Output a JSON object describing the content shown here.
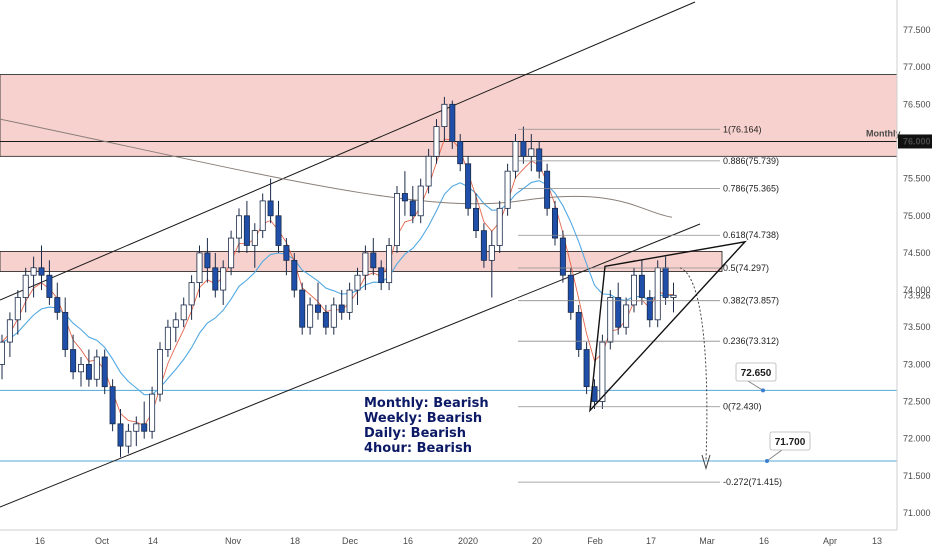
{
  "chart_data": {
    "type": "candlestick",
    "instrument_note": "",
    "y_axis": {
      "position": "right",
      "ylim": [
        70.8,
        77.95
      ],
      "ticks": [
        71.0,
        71.5,
        72.0,
        72.5,
        73.0,
        73.5,
        74.0,
        74.5,
        75.0,
        75.5,
        76.0,
        76.5,
        77.0,
        77.5
      ],
      "tick_labels": [
        "71.000",
        "71.500",
        "72.000",
        "72.500",
        "73.000",
        "73.500",
        "74.000",
        "74.500",
        "75.000",
        "75.500",
        "76.000",
        "76.500",
        "77.000",
        "77.500"
      ]
    },
    "x_axis": {
      "tick_labels": [
        "16",
        "Oct",
        "14",
        "Nov",
        "18",
        "Dec",
        "16",
        "2020",
        "20",
        "Feb",
        "17",
        "Mar",
        "16",
        "Apr",
        "13"
      ]
    },
    "current_price": {
      "label": "73.926",
      "value": 73.926
    },
    "colors": {
      "up": "#ffffff",
      "down": "#1f4fa8",
      "zone": "#f6c9c4",
      "ema_fast": "#e1573a",
      "ema_slow": "#52a9e3",
      "ma_long": "#8a7e78",
      "hline": "#55a8d8",
      "up_bar": "#ffffff"
    },
    "supply_zones": [
      {
        "from": 75.8,
        "to": 76.9
      },
      {
        "from": 74.25,
        "to": 74.52
      }
    ],
    "horizontal_levels": [
      {
        "name": "monthly",
        "value": 76.0,
        "label": "Monthly",
        "price_label": "76.000"
      },
      {
        "name": "target-1",
        "value": 72.65,
        "label": "72.650"
      },
      {
        "name": "target-2",
        "value": 71.7,
        "label": "71.700"
      }
    ],
    "fibonacci": [
      {
        "ratio": "1",
        "value": 76.164,
        "label": "1(76.164)"
      },
      {
        "ratio": "0.886",
        "value": 75.739,
        "label": "0.886(75.739)"
      },
      {
        "ratio": "0.786",
        "value": 75.365,
        "label": "0.786(75.365)"
      },
      {
        "ratio": "0.618",
        "value": 74.738,
        "label": "0.618(74.738)"
      },
      {
        "ratio": "0.5",
        "value": 74.297,
        "label": "0.5(74.297)"
      },
      {
        "ratio": "0.382",
        "value": 73.857,
        "label": "0.382(73.857)"
      },
      {
        "ratio": "0.236",
        "value": 73.312,
        "label": "0.236(73.312)"
      },
      {
        "ratio": "0",
        "value": 72.43,
        "label": "0(72.430)"
      },
      {
        "ratio": "-0.272",
        "value": 71.415,
        "label": "-0.272(71.415)"
      }
    ],
    "annotations": [
      "Monthly: Bearish",
      "Weekly: Bearish",
      "Daily: Bearish",
      "4hour: Bearish"
    ],
    "candles": [
      [
        73.0,
        73.4,
        72.8,
        73.3
      ],
      [
        73.3,
        73.7,
        73.1,
        73.6
      ],
      [
        73.6,
        74.0,
        73.4,
        73.9
      ],
      [
        73.9,
        74.3,
        73.7,
        74.2
      ],
      [
        74.2,
        74.45,
        73.9,
        74.3
      ],
      [
        74.3,
        74.6,
        74.0,
        74.2
      ],
      [
        74.2,
        74.4,
        73.8,
        73.9
      ],
      [
        73.9,
        74.1,
        73.6,
        73.7
      ],
      [
        73.7,
        73.9,
        73.1,
        73.2
      ],
      [
        73.2,
        73.4,
        72.8,
        72.9
      ],
      [
        72.9,
        73.1,
        72.7,
        73.0
      ],
      [
        73.0,
        73.2,
        72.7,
        72.8
      ],
      [
        72.8,
        73.2,
        72.7,
        73.1
      ],
      [
        73.1,
        73.2,
        72.6,
        72.7
      ],
      [
        72.7,
        72.8,
        72.1,
        72.2
      ],
      [
        72.2,
        72.4,
        71.75,
        71.9
      ],
      [
        71.9,
        72.2,
        71.8,
        72.1
      ],
      [
        72.1,
        72.3,
        71.9,
        72.2
      ],
      [
        72.2,
        72.5,
        72.0,
        72.1
      ],
      [
        72.1,
        72.7,
        72.0,
        72.6
      ],
      [
        72.6,
        73.3,
        72.5,
        73.2
      ],
      [
        73.2,
        73.6,
        73.1,
        73.5
      ],
      [
        73.5,
        73.7,
        73.3,
        73.6
      ],
      [
        73.6,
        73.9,
        73.5,
        73.8
      ],
      [
        73.8,
        74.2,
        73.6,
        74.1
      ],
      [
        74.1,
        74.6,
        73.9,
        74.5
      ],
      [
        74.5,
        74.7,
        74.1,
        74.3
      ],
      [
        74.3,
        74.5,
        73.9,
        74.0
      ],
      [
        74.0,
        74.4,
        73.8,
        74.3
      ],
      [
        74.3,
        74.8,
        74.2,
        74.7
      ],
      [
        74.7,
        75.1,
        74.5,
        75.0
      ],
      [
        75.0,
        75.2,
        74.5,
        74.6
      ],
      [
        74.6,
        74.9,
        74.3,
        74.8
      ],
      [
        74.8,
        75.3,
        74.7,
        75.2
      ],
      [
        75.2,
        75.5,
        74.9,
        75.0
      ],
      [
        75.0,
        75.2,
        74.5,
        74.6
      ],
      [
        74.6,
        74.7,
        74.2,
        74.4
      ],
      [
        74.4,
        74.5,
        73.9,
        74.0
      ],
      [
        74.0,
        74.1,
        73.4,
        73.5
      ],
      [
        73.5,
        73.9,
        73.4,
        73.8
      ],
      [
        73.8,
        74.1,
        73.6,
        73.7
      ],
      [
        73.7,
        73.8,
        73.4,
        73.5
      ],
      [
        73.5,
        73.9,
        73.4,
        73.8
      ],
      [
        73.8,
        74.0,
        73.6,
        73.7
      ],
      [
        73.7,
        74.1,
        73.6,
        74.0
      ],
      [
        74.0,
        74.3,
        73.8,
        74.2
      ],
      [
        74.2,
        74.6,
        74.0,
        74.5
      ],
      [
        74.5,
        74.7,
        74.2,
        74.3
      ],
      [
        74.3,
        74.4,
        74.0,
        74.1
      ],
      [
        74.1,
        74.7,
        74.0,
        74.6
      ],
      [
        74.6,
        75.4,
        74.5,
        75.3
      ],
      [
        75.3,
        75.6,
        75.0,
        75.2
      ],
      [
        75.2,
        75.4,
        74.9,
        75.0
      ],
      [
        75.0,
        75.5,
        74.9,
        75.4
      ],
      [
        75.4,
        75.9,
        75.3,
        75.8
      ],
      [
        75.8,
        76.3,
        75.7,
        76.2
      ],
      [
        76.2,
        76.6,
        76.0,
        76.5
      ],
      [
        76.5,
        76.55,
        75.9,
        76.0
      ],
      [
        76.0,
        76.1,
        75.6,
        75.7
      ],
      [
        75.7,
        75.8,
        75.0,
        75.1
      ],
      [
        75.1,
        75.3,
        74.7,
        74.8
      ],
      [
        74.8,
        74.9,
        74.3,
        74.4
      ],
      [
        74.4,
        74.8,
        73.9,
        74.6
      ],
      [
        74.6,
        75.2,
        74.5,
        75.1
      ],
      [
        75.1,
        75.7,
        75.0,
        75.6
      ],
      [
        75.6,
        76.1,
        75.5,
        76.0
      ],
      [
        76.0,
        76.2,
        75.7,
        75.8
      ],
      [
        75.8,
        76.1,
        75.6,
        75.9
      ],
      [
        75.9,
        76.0,
        75.5,
        75.6
      ],
      [
        75.6,
        75.7,
        75.0,
        75.1
      ],
      [
        75.1,
        75.2,
        74.6,
        74.7
      ],
      [
        74.7,
        74.8,
        74.1,
        74.2
      ],
      [
        74.2,
        74.3,
        73.6,
        73.7
      ],
      [
        73.7,
        73.8,
        73.1,
        73.2
      ],
      [
        73.2,
        73.3,
        72.6,
        72.7
      ],
      [
        72.7,
        72.8,
        72.4,
        72.5
      ],
      [
        72.5,
        73.4,
        72.4,
        73.3
      ],
      [
        73.3,
        74.0,
        73.2,
        73.9
      ],
      [
        73.9,
        74.1,
        73.4,
        73.5
      ],
      [
        73.5,
        73.9,
        73.4,
        73.8
      ],
      [
        73.8,
        74.3,
        73.7,
        74.2
      ],
      [
        74.2,
        74.4,
        73.8,
        73.9
      ],
      [
        73.9,
        74.0,
        73.5,
        73.6
      ],
      [
        73.6,
        74.4,
        73.5,
        74.3
      ],
      [
        74.3,
        74.45,
        73.8,
        73.9
      ],
      [
        73.9,
        74.1,
        73.7,
        73.93
      ]
    ]
  }
}
